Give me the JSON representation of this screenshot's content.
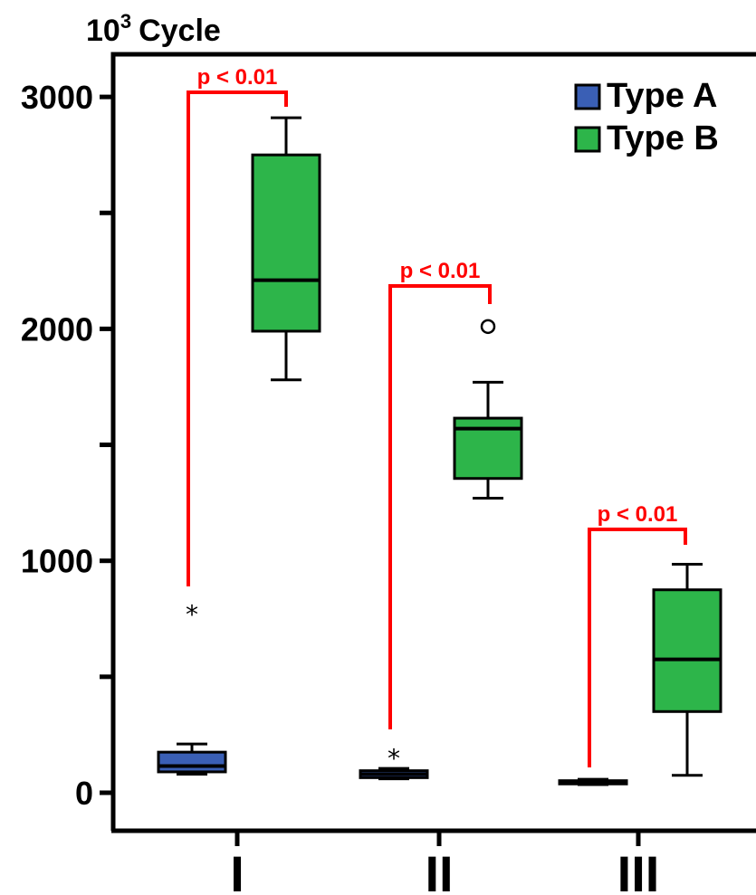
{
  "chart_data": {
    "type": "box",
    "ylabel": "10",
    "ylabel_superscript": "3",
    "ylabel_unit": "Cycle",
    "ylim": [
      -150,
      3200
    ],
    "yticks_major": [
      0,
      1000,
      2000,
      3000
    ],
    "yticks_minor": [
      500,
      1500,
      2500
    ],
    "ytick_labels": [
      "0",
      "1000",
      "2000",
      "3000"
    ],
    "categories": [
      "I",
      "II",
      "III"
    ],
    "legend_position": "top-right",
    "series": [
      {
        "name": "Type A",
        "color": "#3a5fb5",
        "boxes": [
          {
            "whisker_low": 80,
            "q1": 90,
            "median": 115,
            "q3": 175,
            "whisker_high": 210,
            "outliers": [],
            "extremes": [
              810
            ]
          },
          {
            "whisker_low": 60,
            "q1": 65,
            "median": 80,
            "q3": 95,
            "whisker_high": 105,
            "outliers": [],
            "extremes": [
              190
            ]
          },
          {
            "whisker_low": 35,
            "q1": 38,
            "median": 45,
            "q3": 52,
            "whisker_high": 58,
            "outliers": [],
            "extremes": []
          }
        ]
      },
      {
        "name": "Type B",
        "color": "#2db54a",
        "boxes": [
          {
            "whisker_low": 1780,
            "q1": 1990,
            "median": 2210,
            "q3": 2750,
            "whisker_high": 2910,
            "outliers": [],
            "extremes": []
          },
          {
            "whisker_low": 1270,
            "q1": 1355,
            "median": 1570,
            "q3": 1615,
            "whisker_high": 1770,
            "outliers": [
              2010
            ],
            "extremes": []
          },
          {
            "whisker_low": 75,
            "q1": 350,
            "median": 575,
            "q3": 875,
            "whisker_high": 985,
            "outliers": [],
            "extremes": []
          }
        ]
      }
    ],
    "annotations": [
      {
        "category": "I",
        "text": "p < 0.01"
      },
      {
        "category": "II",
        "text": "p < 0.01"
      },
      {
        "category": "III",
        "text": "p < 0.01"
      }
    ],
    "annotation_color": "#ff0000"
  }
}
